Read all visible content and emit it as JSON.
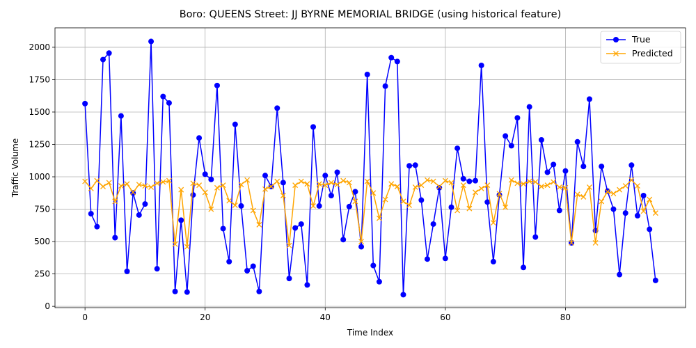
{
  "chart_data": {
    "type": "line",
    "title": "Boro: QUEENS Street: JJ BYRNE MEMORIAL BRIDGE (using historical feature)",
    "xlabel": "Time Index",
    "ylabel": "Traffic Volume",
    "xlim": [
      -5,
      100
    ],
    "ylim": [
      -10,
      2150
    ],
    "x_ticks": [
      0,
      20,
      40,
      60,
      80
    ],
    "y_ticks": [
      0,
      250,
      500,
      750,
      1000,
      1250,
      1500,
      1750,
      2000
    ],
    "grid": true,
    "legend_position": "top-right",
    "series": [
      {
        "name": "True",
        "color": "#0000ff",
        "marker": "circle",
        "values": [
          1565,
          715,
          615,
          1905,
          1955,
          530,
          1470,
          270,
          875,
          705,
          790,
          2045,
          290,
          1620,
          1570,
          115,
          665,
          110,
          860,
          1300,
          1020,
          980,
          1705,
          600,
          345,
          1405,
          775,
          275,
          310,
          115,
          1010,
          925,
          1530,
          955,
          215,
          605,
          635,
          165,
          1385,
          775,
          1010,
          855,
          1035,
          515,
          770,
          885,
          460,
          1790,
          315,
          190,
          1700,
          1920,
          1890,
          90,
          1085,
          1090,
          820,
          365,
          635,
          915,
          370,
          765,
          1220,
          985,
          965,
          970,
          1860,
          805,
          345,
          860,
          1315,
          1240,
          1455,
          300,
          1540,
          535,
          1285,
          1035,
          1095,
          740,
          1045,
          490,
          1270,
          1080,
          1600,
          585,
          1080,
          890,
          750,
          245,
          720,
          1090,
          700,
          855,
          595,
          200
        ]
      },
      {
        "name": "Predicted",
        "color": "#ffa500",
        "marker": "x",
        "values": [
          965,
          910,
          970,
          925,
          955,
          810,
          930,
          945,
          880,
          940,
          930,
          920,
          950,
          960,
          970,
          480,
          900,
          460,
          950,
          935,
          880,
          750,
          915,
          935,
          815,
          780,
          940,
          975,
          740,
          630,
          905,
          925,
          965,
          855,
          470,
          935,
          965,
          945,
          775,
          945,
          935,
          955,
          940,
          970,
          955,
          810,
          500,
          965,
          875,
          680,
          825,
          945,
          925,
          810,
          780,
          920,
          935,
          975,
          965,
          925,
          970,
          955,
          740,
          935,
          755,
          880,
          910,
          935,
          645,
          870,
          765,
          975,
          950,
          945,
          965,
          960,
          925,
          935,
          960,
          920,
          915,
          490,
          865,
          845,
          920,
          490,
          810,
          885,
          870,
          900,
          930,
          975,
          930,
          735,
          825,
          720
        ]
      }
    ]
  }
}
